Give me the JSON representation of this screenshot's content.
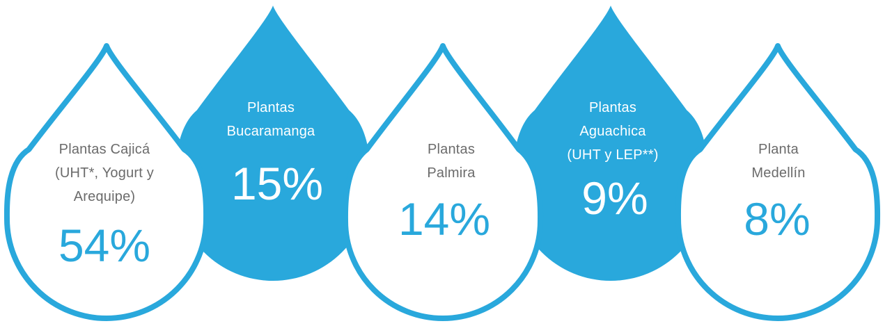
{
  "colors": {
    "accent": "#29a8dc",
    "dark_text": "#6b6b6b",
    "light_text": "#ffffff",
    "background": "#ffffff"
  },
  "drops": [
    {
      "id": "cajica",
      "style": "outline",
      "lines": [
        "Plantas Cajicá",
        "(UHT*, Yogurt y",
        "Arequipe)"
      ],
      "percent": "54%",
      "share": 54
    },
    {
      "id": "bucaramanga",
      "style": "filled",
      "lines": [
        "Plantas",
        "Bucaramanga"
      ],
      "percent": "15%",
      "share": 15
    },
    {
      "id": "palmira",
      "style": "outline",
      "lines": [
        "Plantas",
        "Palmira"
      ],
      "percent": "14%",
      "share": 14
    },
    {
      "id": "aguachica",
      "style": "filled",
      "lines": [
        "Plantas",
        "Aguachica",
        "(UHT y LEP**)"
      ],
      "percent": "9%",
      "share": 9
    },
    {
      "id": "medellin",
      "style": "outline",
      "lines": [
        "Planta",
        "Medellín"
      ],
      "percent": "8%",
      "share": 8
    }
  ]
}
